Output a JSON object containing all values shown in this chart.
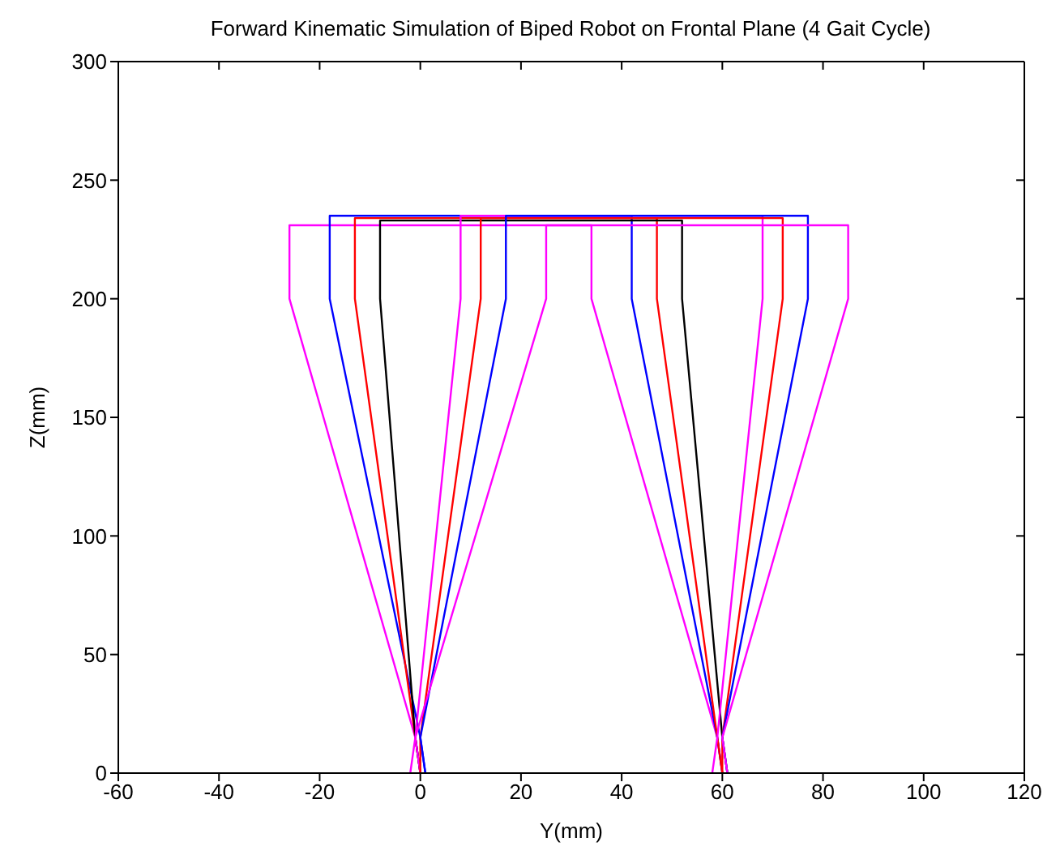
{
  "chart_data": {
    "type": "line",
    "title": "Forward Kinematic Simulation of Biped Robot on Frontal Plane (4 Gait Cycle)",
    "xlabel": "Y(mm)",
    "ylabel": "Z(mm)",
    "xlim": [
      -60,
      120
    ],
    "xticks": [
      -60,
      -40,
      -20,
      0,
      20,
      40,
      60,
      80,
      100,
      120
    ],
    "ylim": [
      0,
      300
    ],
    "yticks": [
      0,
      50,
      100,
      150,
      200,
      250,
      300
    ],
    "grid": false,
    "marker": "none",
    "line_style": "solid",
    "series": [
      {
        "color": "#ff00ff",
        "x": [
          0,
          -1,
          -26,
          -26,
          34,
          34,
          59,
          60
        ],
        "values": [
          0,
          15,
          200,
          231,
          231,
          200,
          15,
          0
        ]
      },
      {
        "color": "#0000ff",
        "x": [
          1,
          0,
          -18,
          -18,
          42,
          42,
          59,
          60
        ],
        "values": [
          0,
          15,
          200,
          235,
          235,
          200,
          15,
          0
        ]
      },
      {
        "color": "#ff0000",
        "x": [
          0,
          -1,
          -13,
          -13,
          47,
          47,
          59,
          60
        ],
        "values": [
          0,
          15,
          200,
          234,
          234,
          200,
          15,
          0
        ]
      },
      {
        "color": "#000000",
        "x": [
          0,
          -1,
          -8,
          -8,
          52,
          52,
          60,
          61
        ],
        "values": [
          0,
          15,
          200,
          233,
          233,
          200,
          15,
          0
        ]
      },
      {
        "color": "#ff00ff",
        "x": [
          0,
          -1,
          8,
          8,
          68,
          68,
          59,
          58
        ],
        "values": [
          0,
          15,
          200,
          235,
          235,
          200,
          15,
          0
        ]
      },
      {
        "color": "#ff0000",
        "x": [
          0,
          0,
          12,
          12,
          72,
          72,
          60,
          60
        ],
        "values": [
          0,
          15,
          200,
          234,
          234,
          200,
          15,
          0
        ]
      },
      {
        "color": "#0000ff",
        "x": [
          1,
          0,
          17,
          17,
          77,
          77,
          60,
          61
        ],
        "values": [
          0,
          15,
          200,
          235,
          235,
          200,
          15,
          0
        ]
      },
      {
        "color": "#ff00ff",
        "x": [
          -2,
          -1,
          25,
          25,
          85,
          85,
          60,
          61
        ],
        "values": [
          0,
          15,
          200,
          231,
          231,
          200,
          15,
          0
        ]
      }
    ]
  }
}
